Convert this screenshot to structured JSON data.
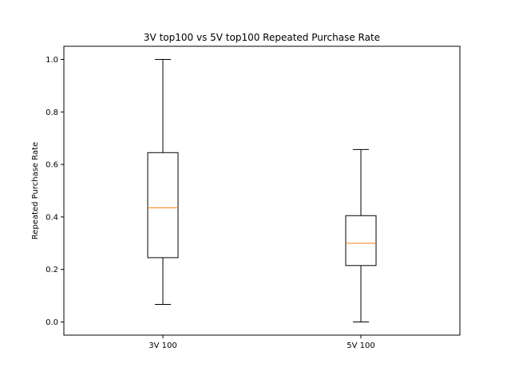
{
  "chart_data": {
    "type": "box",
    "title": "3V top100 vs 5V top100 Repeated Purchase Rate",
    "xlabel": "",
    "ylabel": "Repeated Purchase Rate",
    "ylim": [
      -0.05,
      1.05
    ],
    "yticks": [
      "0.0",
      "0.2",
      "0.4",
      "0.6",
      "0.8",
      "1.0"
    ],
    "categories": [
      "3V 100",
      "5V 100"
    ],
    "series": [
      {
        "category": "3V 100",
        "whisker_low": 0.067,
        "q1": 0.245,
        "median": 0.435,
        "q3": 0.645,
        "whisker_high": 1.0
      },
      {
        "category": "5V 100",
        "whisker_low": 0.0,
        "q1": 0.215,
        "median": 0.3,
        "q3": 0.405,
        "whisker_high": 0.657
      }
    ],
    "colors": {
      "box": "#000000",
      "median": "#ff7f0e"
    },
    "grid": false
  }
}
